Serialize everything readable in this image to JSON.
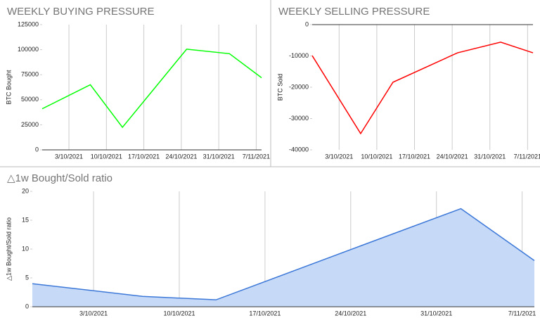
{
  "chart_data": [
    {
      "type": "line",
      "title": "WEEKLY BUYING PRESSURE",
      "y_label": "BTC Bought",
      "x": [
        "28/9/2021",
        "7/10/2021",
        "13/10/2021",
        "25/10/2021",
        "2/11/2021",
        "8/11/2021"
      ],
      "values": [
        41000,
        65000,
        22500,
        100500,
        96000,
        72000
      ],
      "color": "#00ff00",
      "xlim": [
        "28/9/2021",
        "8/11/2021"
      ],
      "xticks": [
        "3/10/2021",
        "10/10/2021",
        "17/10/2021",
        "24/10/2021",
        "31/10/2021",
        "7/11/2021"
      ],
      "ylim": [
        0,
        125000
      ],
      "yticks": [
        0,
        25000,
        50000,
        75000,
        100000,
        125000
      ],
      "grid": "x"
    },
    {
      "type": "line",
      "title": "WEEKLY SELLING PRESSURE",
      "y_label": "BTC Sold",
      "x": [
        "28/9/2021",
        "7/10/2021",
        "13/10/2021",
        "25/10/2021",
        "2/11/2021",
        "8/11/2021"
      ],
      "values": [
        -9900,
        -34800,
        -18400,
        -9000,
        -5600,
        -9000
      ],
      "color": "#ff0000",
      "xlim": [
        "28/9/2021",
        "8/11/2021"
      ],
      "xticks": [
        "3/10/2021",
        "10/10/2021",
        "17/10/2021",
        "24/10/2021",
        "31/10/2021",
        "7/11/2021"
      ],
      "ylim": [
        -40000,
        0
      ],
      "yticks": [
        -40000,
        -30000,
        -20000,
        -10000,
        0
      ],
      "grid": "x"
    },
    {
      "type": "area",
      "title": "△1w Bought/Sold ratio",
      "y_label": "△1w Bought/Sold ratio",
      "x": [
        "28/9/2021",
        "7/10/2021",
        "13/10/2021",
        "25/10/2021",
        "2/11/2021",
        "8/11/2021"
      ],
      "values": [
        4.0,
        1.8,
        1.2,
        10.7,
        17.0,
        8.0
      ],
      "color": "#3c78d8",
      "fill_color": "#c6d9f7",
      "xlim": [
        "28/9/2021",
        "8/11/2021"
      ],
      "xticks": [
        "3/10/2021",
        "10/10/2021",
        "17/10/2021",
        "24/10/2021",
        "31/10/2021",
        "7/11/2021"
      ],
      "ylim": [
        0,
        20
      ],
      "yticks": [
        0,
        5,
        10,
        15,
        20
      ],
      "grid": "x"
    }
  ]
}
